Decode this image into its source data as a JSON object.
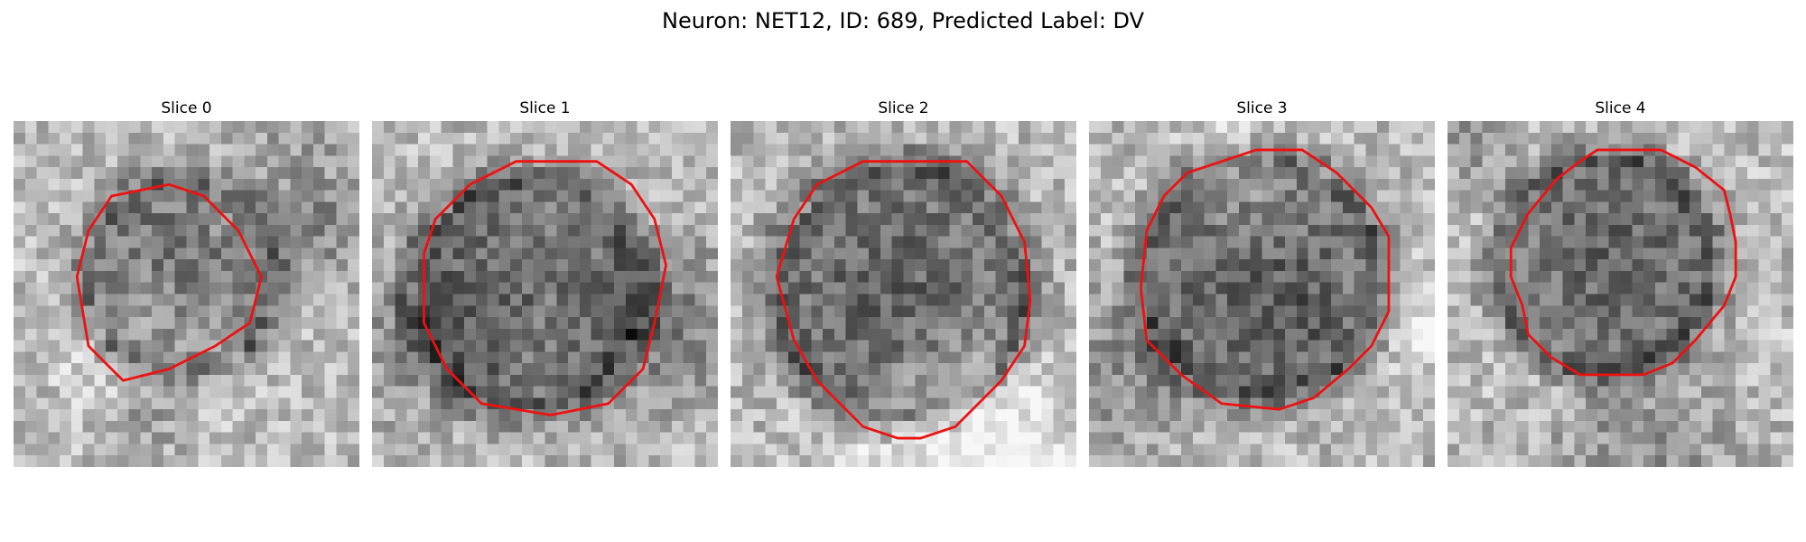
{
  "figure": {
    "title": "Neuron: NET12, ID: 689, Predicted Label: DV"
  },
  "panels": [
    {
      "title": "Slice 0"
    },
    {
      "title": "Slice 1"
    },
    {
      "title": "Slice 2"
    },
    {
      "title": "Slice 3"
    },
    {
      "title": "Slice 4"
    }
  ],
  "colors": {
    "contour": "#ee1111",
    "background": "#ffffff"
  }
}
